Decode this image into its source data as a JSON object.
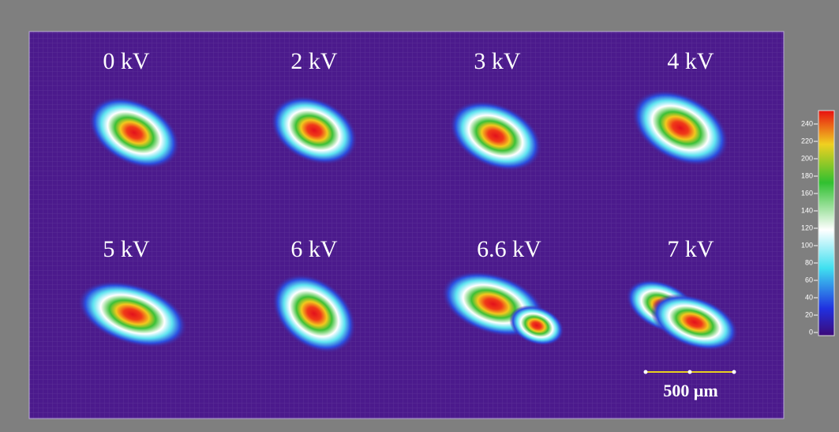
{
  "panels": [
    {
      "label": "0 kV"
    },
    {
      "label": "2 kV"
    },
    {
      "label": "3 kV"
    },
    {
      "label": "4 kV"
    },
    {
      "label": "5 kV"
    },
    {
      "label": "6 kV"
    },
    {
      "label": "6.6 kV"
    },
    {
      "label": "7 kV"
    }
  ],
  "colorbar": {
    "ticks": [
      "240",
      "220",
      "200",
      "180",
      "160",
      "140",
      "120",
      "100",
      "80",
      "60",
      "40",
      "20",
      "0"
    ]
  },
  "scale_bar": {
    "label": "500 μm"
  }
}
